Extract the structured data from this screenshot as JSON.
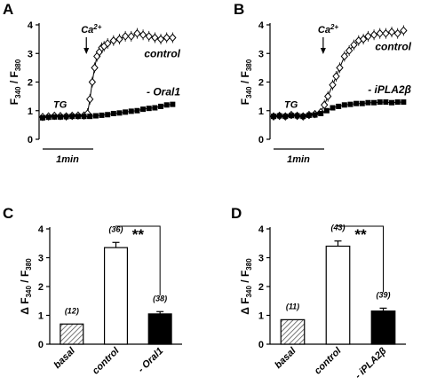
{
  "panel_labels": [
    "A",
    "B",
    "C",
    "D"
  ],
  "chart_data": [
    {
      "panel": "A",
      "type": "line",
      "ylabel": "F340 / F380",
      "ylabel_parts": {
        "main": "F",
        "sub1": "340",
        "sep": " / F",
        "sub2": "380"
      },
      "ylim": [
        0,
        4
      ],
      "yticks": [
        "0",
        "1",
        "2",
        "3",
        "4"
      ],
      "xlim": [
        0,
        11.5
      ],
      "annotations": {
        "tg": "TG",
        "ca": "Ca",
        "ca_sup": "2+",
        "scalebar": "1min",
        "ca_time": 3.7
      },
      "series": [
        {
          "name": "control",
          "marker": "diamond-open",
          "x": [
            0,
            0.5,
            1,
            1.5,
            2,
            2.5,
            3,
            3.5,
            3.8,
            4,
            4.2,
            4.4,
            4.6,
            4.8,
            5,
            5.2,
            5.5,
            6,
            6.5,
            7,
            7.5,
            8,
            8.5,
            9,
            9.5,
            10,
            10.5,
            11
          ],
          "y": [
            0.78,
            0.8,
            0.82,
            0.81,
            0.8,
            0.82,
            0.83,
            0.83,
            0.9,
            1.4,
            2.0,
            2.5,
            2.9,
            3.05,
            3.2,
            3.25,
            3.35,
            3.45,
            3.5,
            3.6,
            3.6,
            3.7,
            3.65,
            3.6,
            3.55,
            3.5,
            3.55,
            3.55
          ]
        },
        {
          "name": "- Oral1",
          "marker": "square-filled",
          "x": [
            0,
            0.5,
            1,
            1.5,
            2,
            2.5,
            3,
            3.5,
            4,
            4.5,
            5,
            5.5,
            6,
            6.5,
            7,
            7.5,
            8,
            8.5,
            9,
            9.5,
            10,
            10.5,
            11
          ],
          "y": [
            0.75,
            0.77,
            0.78,
            0.78,
            0.79,
            0.8,
            0.8,
            0.8,
            0.8,
            0.82,
            0.84,
            0.86,
            0.9,
            0.92,
            0.95,
            0.98,
            1.0,
            1.05,
            1.08,
            1.1,
            1.15,
            1.2,
            1.22
          ]
        }
      ]
    },
    {
      "panel": "B",
      "type": "line",
      "ylabel": "F340 / F380",
      "ylabel_parts": {
        "main": "F",
        "sub1": "340",
        "sep": " / F",
        "sub2": "380"
      },
      "ylim": [
        0,
        4
      ],
      "yticks": [
        "0",
        "1",
        "2",
        "3",
        "4"
      ],
      "xlim": [
        0,
        11.5
      ],
      "annotations": {
        "tg": "TG",
        "ca": "Ca",
        "ca_sup": "2+",
        "scalebar": "1min",
        "ca_time": 4.2
      },
      "series": [
        {
          "name": "control",
          "marker": "diamond-open",
          "x": [
            0,
            0.5,
            1,
            1.5,
            2,
            2.5,
            3,
            3.5,
            4,
            4.3,
            4.6,
            5,
            5.3,
            5.6,
            6,
            6.4,
            6.8,
            7.2,
            7.6,
            8,
            8.5,
            9,
            9.5,
            10,
            10.5,
            11
          ],
          "y": [
            0.8,
            0.82,
            0.8,
            0.85,
            0.82,
            0.8,
            0.85,
            0.88,
            0.95,
            1.2,
            1.5,
            1.9,
            2.2,
            2.5,
            2.9,
            3.1,
            3.3,
            3.45,
            3.5,
            3.6,
            3.65,
            3.7,
            3.7,
            3.75,
            3.7,
            3.8
          ]
        },
        {
          "name": "- iPLA2β",
          "marker": "square-filled",
          "x": [
            0,
            0.5,
            1,
            1.5,
            2,
            2.5,
            3,
            3.5,
            4,
            4.5,
            5,
            5.5,
            6,
            6.5,
            7,
            7.5,
            8,
            8.5,
            9,
            9.5,
            10,
            10.5,
            11
          ],
          "y": [
            0.8,
            0.82,
            0.8,
            0.83,
            0.82,
            0.8,
            0.84,
            0.85,
            0.9,
            1.0,
            1.1,
            1.15,
            1.2,
            1.22,
            1.25,
            1.25,
            1.28,
            1.28,
            1.3,
            1.3,
            1.28,
            1.3,
            1.3
          ]
        }
      ]
    },
    {
      "panel": "C",
      "type": "bar",
      "ylabel": "Δ F340 / F380",
      "ylabel_parts": {
        "prefix": "Δ F",
        "sub1": "340",
        "sep": " / F",
        "sub2": "380"
      },
      "ylim": [
        0,
        4
      ],
      "yticks": [
        "0",
        "1",
        "2",
        "3",
        "4"
      ],
      "categories": [
        "basal",
        "control",
        "- Oral1"
      ],
      "values": [
        0.7,
        3.35,
        1.05
      ],
      "errors": [
        0,
        0.18,
        0.08
      ],
      "n_labels": [
        "(12)",
        "(36)",
        "(38)"
      ],
      "bar_styles": [
        "hatched",
        "open",
        "filled"
      ],
      "significance": "**"
    },
    {
      "panel": "D",
      "type": "bar",
      "ylabel": "Δ F340 / F380",
      "ylabel_parts": {
        "prefix": "Δ F",
        "sub1": "340",
        "sep": " / F",
        "sub2": "380"
      },
      "ylim": [
        0,
        4
      ],
      "yticks": [
        "0",
        "1",
        "2",
        "3",
        "4"
      ],
      "categories": [
        "basal",
        "control",
        "- iPLA2β"
      ],
      "values": [
        0.85,
        3.4,
        1.15
      ],
      "errors": [
        0,
        0.18,
        0.1
      ],
      "n_labels": [
        "(11)",
        "(43)",
        "(39)"
      ],
      "bar_styles": [
        "hatched",
        "open",
        "filled"
      ],
      "significance": "**"
    }
  ]
}
